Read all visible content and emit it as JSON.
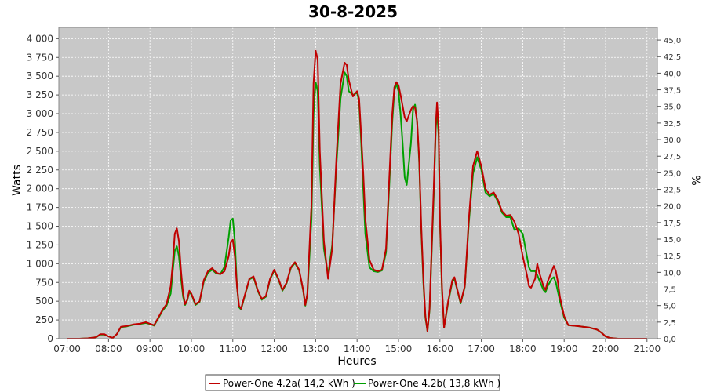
{
  "chart_data": {
    "type": "line",
    "title": "30-8-2025",
    "xlabel": "Heures",
    "ylabel": "Watts",
    "ylabel_right": "%",
    "xlim": [
      6.8,
      21.25
    ],
    "ylim": [
      0,
      4150
    ],
    "ylim_right": [
      0,
      46.9
    ],
    "grid": true,
    "legend_position": "bottom-center",
    "background": "#c8c8c8",
    "x_ticks": [
      "07:00",
      "08:00",
      "09:00",
      "10:00",
      "11:00",
      "12:00",
      "13:00",
      "14:00",
      "15:00",
      "16:00",
      "17:00",
      "18:00",
      "19:00",
      "20:00",
      "21:00"
    ],
    "y_ticks": [
      "0",
      "250",
      "500",
      "750",
      "1 000",
      "1 250",
      "1 500",
      "1 750",
      "2 000",
      "2 250",
      "2 500",
      "2 750",
      "3 000",
      "3 250",
      "3 500",
      "3 750",
      "4 000"
    ],
    "y_ticks_right": [
      "0,0",
      "2,5",
      "5,0",
      "7,5",
      "10,0",
      "12,5",
      "15,0",
      "17,5",
      "20,0",
      "22,5",
      "25,0",
      "27,5",
      "30,0",
      "32,5",
      "35,0",
      "37,5",
      "40,0",
      "42,5",
      "45,0"
    ],
    "series": [
      {
        "name": "Power-One 4.2a( 14,2 kWh )",
        "color": "#c00000",
        "points": [
          [
            7.0,
            0
          ],
          [
            7.3,
            0
          ],
          [
            7.5,
            5
          ],
          [
            7.7,
            20
          ],
          [
            7.8,
            60
          ],
          [
            7.9,
            60
          ],
          [
            8.0,
            30
          ],
          [
            8.1,
            10
          ],
          [
            8.2,
            60
          ],
          [
            8.3,
            160
          ],
          [
            8.45,
            170
          ],
          [
            8.6,
            190
          ],
          [
            8.75,
            200
          ],
          [
            8.9,
            220
          ],
          [
            9.0,
            200
          ],
          [
            9.1,
            180
          ],
          [
            9.2,
            280
          ],
          [
            9.3,
            380
          ],
          [
            9.4,
            460
          ],
          [
            9.5,
            700
          ],
          [
            9.55,
            1000
          ],
          [
            9.6,
            1400
          ],
          [
            9.65,
            1470
          ],
          [
            9.7,
            1300
          ],
          [
            9.75,
            900
          ],
          [
            9.8,
            600
          ],
          [
            9.85,
            460
          ],
          [
            9.9,
            520
          ],
          [
            9.95,
            640
          ],
          [
            10.0,
            600
          ],
          [
            10.1,
            460
          ],
          [
            10.2,
            500
          ],
          [
            10.3,
            780
          ],
          [
            10.4,
            900
          ],
          [
            10.5,
            940
          ],
          [
            10.6,
            880
          ],
          [
            10.7,
            860
          ],
          [
            10.8,
            900
          ],
          [
            10.9,
            1100
          ],
          [
            10.95,
            1280
          ],
          [
            11.0,
            1320
          ],
          [
            11.05,
            1100
          ],
          [
            11.1,
            700
          ],
          [
            11.15,
            440
          ],
          [
            11.2,
            400
          ],
          [
            11.3,
            600
          ],
          [
            11.4,
            800
          ],
          [
            11.5,
            830
          ],
          [
            11.6,
            650
          ],
          [
            11.7,
            530
          ],
          [
            11.8,
            570
          ],
          [
            11.9,
            800
          ],
          [
            12.0,
            920
          ],
          [
            12.1,
            800
          ],
          [
            12.2,
            650
          ],
          [
            12.3,
            750
          ],
          [
            12.4,
            950
          ],
          [
            12.5,
            1020
          ],
          [
            12.6,
            920
          ],
          [
            12.7,
            650
          ],
          [
            12.75,
            450
          ],
          [
            12.8,
            600
          ],
          [
            12.9,
            1800
          ],
          [
            12.95,
            3400
          ],
          [
            13.0,
            3840
          ],
          [
            13.05,
            3720
          ],
          [
            13.1,
            2500
          ],
          [
            13.2,
            1300
          ],
          [
            13.3,
            800
          ],
          [
            13.4,
            1200
          ],
          [
            13.5,
            2400
          ],
          [
            13.6,
            3400
          ],
          [
            13.7,
            3680
          ],
          [
            13.75,
            3650
          ],
          [
            13.8,
            3450
          ],
          [
            13.9,
            3230
          ],
          [
            14.0,
            3300
          ],
          [
            14.05,
            3200
          ],
          [
            14.1,
            2700
          ],
          [
            14.15,
            2200
          ],
          [
            14.2,
            1600
          ],
          [
            14.3,
            1050
          ],
          [
            14.4,
            920
          ],
          [
            14.5,
            900
          ],
          [
            14.6,
            920
          ],
          [
            14.7,
            1200
          ],
          [
            14.8,
            2400
          ],
          [
            14.85,
            3000
          ],
          [
            14.9,
            3350
          ],
          [
            14.95,
            3420
          ],
          [
            15.0,
            3380
          ],
          [
            15.05,
            3250
          ],
          [
            15.1,
            3100
          ],
          [
            15.15,
            2950
          ],
          [
            15.2,
            2900
          ],
          [
            15.3,
            3050
          ],
          [
            15.35,
            3100
          ],
          [
            15.4,
            3080
          ],
          [
            15.45,
            2900
          ],
          [
            15.5,
            2400
          ],
          [
            15.55,
            1500
          ],
          [
            15.6,
            800
          ],
          [
            15.65,
            300
          ],
          [
            15.7,
            100
          ],
          [
            15.75,
            400
          ],
          [
            15.85,
            2000
          ],
          [
            15.9,
            2850
          ],
          [
            15.93,
            3150
          ],
          [
            15.97,
            2800
          ],
          [
            16.0,
            1600
          ],
          [
            16.05,
            700
          ],
          [
            16.1,
            150
          ],
          [
            16.2,
            500
          ],
          [
            16.3,
            780
          ],
          [
            16.35,
            820
          ],
          [
            16.4,
            700
          ],
          [
            16.5,
            480
          ],
          [
            16.6,
            700
          ],
          [
            16.7,
            1600
          ],
          [
            16.8,
            2300
          ],
          [
            16.9,
            2500
          ],
          [
            17.0,
            2300
          ],
          [
            17.1,
            2000
          ],
          [
            17.2,
            1920
          ],
          [
            17.3,
            1950
          ],
          [
            17.4,
            1850
          ],
          [
            17.5,
            1700
          ],
          [
            17.6,
            1640
          ],
          [
            17.7,
            1650
          ],
          [
            17.8,
            1560
          ],
          [
            17.9,
            1400
          ],
          [
            18.0,
            1100
          ],
          [
            18.1,
            850
          ],
          [
            18.15,
            700
          ],
          [
            18.2,
            680
          ],
          [
            18.3,
            800
          ],
          [
            18.35,
            1000
          ],
          [
            18.4,
            880
          ],
          [
            18.5,
            700
          ],
          [
            18.55,
            650
          ],
          [
            18.6,
            760
          ],
          [
            18.7,
            900
          ],
          [
            18.75,
            970
          ],
          [
            18.8,
            900
          ],
          [
            18.85,
            750
          ],
          [
            18.9,
            550
          ],
          [
            19.0,
            300
          ],
          [
            19.1,
            180
          ],
          [
            19.3,
            170
          ],
          [
            19.6,
            150
          ],
          [
            19.8,
            120
          ],
          [
            19.9,
            80
          ],
          [
            20.0,
            30
          ],
          [
            20.1,
            10
          ],
          [
            20.3,
            0
          ],
          [
            21.0,
            0
          ]
        ]
      },
      {
        "name": "Power-One 4.2b( 13,8 kWh )",
        "color": "#00a000",
        "points": [
          [
            7.0,
            0
          ],
          [
            7.3,
            0
          ],
          [
            7.5,
            5
          ],
          [
            7.7,
            20
          ],
          [
            7.8,
            55
          ],
          [
            7.9,
            55
          ],
          [
            8.0,
            30
          ],
          [
            8.1,
            10
          ],
          [
            8.2,
            60
          ],
          [
            8.3,
            155
          ],
          [
            8.45,
            165
          ],
          [
            8.6,
            185
          ],
          [
            8.75,
            195
          ],
          [
            8.9,
            210
          ],
          [
            9.0,
            195
          ],
          [
            9.1,
            175
          ],
          [
            9.2,
            270
          ],
          [
            9.3,
            370
          ],
          [
            9.4,
            440
          ],
          [
            9.5,
            600
          ],
          [
            9.55,
            900
          ],
          [
            9.6,
            1170
          ],
          [
            9.65,
            1230
          ],
          [
            9.7,
            1100
          ],
          [
            9.75,
            800
          ],
          [
            9.8,
            560
          ],
          [
            9.85,
            450
          ],
          [
            9.9,
            510
          ],
          [
            9.95,
            620
          ],
          [
            10.0,
            590
          ],
          [
            10.1,
            450
          ],
          [
            10.2,
            490
          ],
          [
            10.3,
            760
          ],
          [
            10.4,
            880
          ],
          [
            10.5,
            920
          ],
          [
            10.6,
            870
          ],
          [
            10.7,
            860
          ],
          [
            10.8,
            960
          ],
          [
            10.9,
            1350
          ],
          [
            10.95,
            1580
          ],
          [
            11.0,
            1600
          ],
          [
            11.05,
            1300
          ],
          [
            11.1,
            700
          ],
          [
            11.15,
            420
          ],
          [
            11.2,
            390
          ],
          [
            11.3,
            590
          ],
          [
            11.4,
            790
          ],
          [
            11.5,
            820
          ],
          [
            11.6,
            640
          ],
          [
            11.7,
            520
          ],
          [
            11.8,
            560
          ],
          [
            11.9,
            790
          ],
          [
            12.0,
            910
          ],
          [
            12.1,
            790
          ],
          [
            12.2,
            640
          ],
          [
            12.3,
            740
          ],
          [
            12.4,
            940
          ],
          [
            12.5,
            1010
          ],
          [
            12.6,
            910
          ],
          [
            12.7,
            640
          ],
          [
            12.75,
            440
          ],
          [
            12.8,
            580
          ],
          [
            12.9,
            1600
          ],
          [
            12.95,
            3000
          ],
          [
            13.0,
            3420
          ],
          [
            13.05,
            3300
          ],
          [
            13.1,
            2300
          ],
          [
            13.2,
            1200
          ],
          [
            13.3,
            850
          ],
          [
            13.4,
            1250
          ],
          [
            13.5,
            2300
          ],
          [
            13.6,
            3200
          ],
          [
            13.7,
            3550
          ],
          [
            13.75,
            3500
          ],
          [
            13.8,
            3300
          ],
          [
            13.9,
            3250
          ],
          [
            14.0,
            3280
          ],
          [
            14.05,
            3150
          ],
          [
            14.1,
            2600
          ],
          [
            14.15,
            2000
          ],
          [
            14.2,
            1400
          ],
          [
            14.3,
            950
          ],
          [
            14.4,
            900
          ],
          [
            14.5,
            890
          ],
          [
            14.6,
            910
          ],
          [
            14.7,
            1150
          ],
          [
            14.8,
            2300
          ],
          [
            14.85,
            2900
          ],
          [
            14.9,
            3300
          ],
          [
            14.95,
            3400
          ],
          [
            15.0,
            3300
          ],
          [
            15.05,
            3000
          ],
          [
            15.1,
            2600
          ],
          [
            15.15,
            2150
          ],
          [
            15.2,
            2050
          ],
          [
            15.3,
            2600
          ],
          [
            15.35,
            3050
          ],
          [
            15.4,
            3120
          ],
          [
            15.45,
            2900
          ],
          [
            15.5,
            2350
          ],
          [
            15.55,
            1450
          ],
          [
            15.6,
            750
          ],
          [
            15.65,
            280
          ],
          [
            15.7,
            100
          ],
          [
            15.75,
            380
          ],
          [
            15.85,
            1900
          ],
          [
            15.9,
            2800
          ],
          [
            15.93,
            3030
          ],
          [
            15.97,
            2700
          ],
          [
            16.0,
            1550
          ],
          [
            16.05,
            650
          ],
          [
            16.1,
            150
          ],
          [
            16.2,
            480
          ],
          [
            16.3,
            760
          ],
          [
            16.35,
            800
          ],
          [
            16.4,
            690
          ],
          [
            16.5,
            470
          ],
          [
            16.6,
            690
          ],
          [
            16.7,
            1550
          ],
          [
            16.8,
            2200
          ],
          [
            16.9,
            2420
          ],
          [
            17.0,
            2250
          ],
          [
            17.1,
            1950
          ],
          [
            17.2,
            1900
          ],
          [
            17.3,
            1930
          ],
          [
            17.4,
            1830
          ],
          [
            17.5,
            1680
          ],
          [
            17.6,
            1620
          ],
          [
            17.7,
            1620
          ],
          [
            17.8,
            1450
          ],
          [
            17.9,
            1470
          ],
          [
            18.0,
            1400
          ],
          [
            18.1,
            1100
          ],
          [
            18.15,
            950
          ],
          [
            18.2,
            900
          ],
          [
            18.3,
            900
          ],
          [
            18.35,
            850
          ],
          [
            18.4,
            780
          ],
          [
            18.5,
            650
          ],
          [
            18.55,
            620
          ],
          [
            18.6,
            700
          ],
          [
            18.7,
            800
          ],
          [
            18.75,
            820
          ],
          [
            18.8,
            750
          ],
          [
            18.85,
            620
          ],
          [
            18.9,
            500
          ],
          [
            19.0,
            280
          ],
          [
            19.1,
            180
          ],
          [
            19.3,
            170
          ],
          [
            19.6,
            150
          ],
          [
            19.8,
            120
          ],
          [
            19.9,
            80
          ],
          [
            20.0,
            30
          ],
          [
            20.1,
            10
          ],
          [
            20.3,
            0
          ],
          [
            21.0,
            0
          ]
        ]
      }
    ]
  }
}
